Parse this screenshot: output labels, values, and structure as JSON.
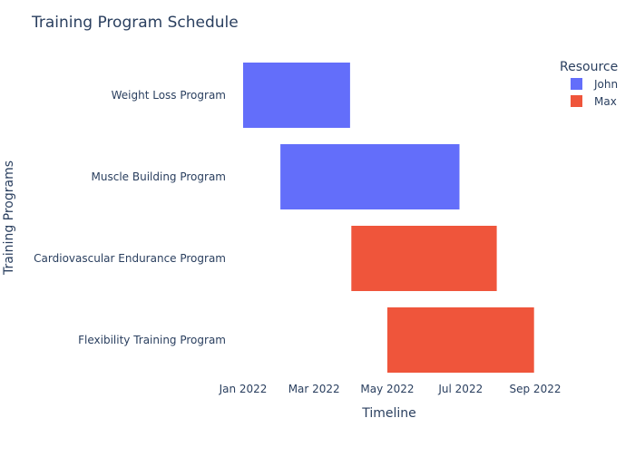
{
  "chart_data": {
    "type": "gantt",
    "title": "Training Program Schedule",
    "xlabel": "Timeline",
    "ylabel": "Training Programs",
    "x_range": [
      "2022-01-01",
      "2022-09-30"
    ],
    "x_ticks": [
      {
        "date": "2022-01-01",
        "label": "Jan 2022"
      },
      {
        "date": "2022-03-01",
        "label": "Mar 2022"
      },
      {
        "date": "2022-05-01",
        "label": "May 2022"
      },
      {
        "date": "2022-07-01",
        "label": "Jul 2022"
      },
      {
        "date": "2022-09-01",
        "label": "Sep 2022"
      }
    ],
    "legend": {
      "title": "Resource",
      "position": "top-right",
      "items": [
        {
          "name": "John",
          "color": "#636efa"
        },
        {
          "name": "Max",
          "color": "#ef553b"
        }
      ]
    },
    "tasks": [
      {
        "task": "Weight Loss Program",
        "start": "2022-01-01",
        "end": "2022-03-31",
        "resource": "John"
      },
      {
        "task": "Muscle Building Program",
        "start": "2022-02-01",
        "end": "2022-06-30",
        "resource": "John"
      },
      {
        "task": "Cardiovascular Endurance Program",
        "start": "2022-04-01",
        "end": "2022-07-31",
        "resource": "Max"
      },
      {
        "task": "Flexibility Training Program",
        "start": "2022-05-01",
        "end": "2022-08-31",
        "resource": "Max"
      }
    ]
  }
}
